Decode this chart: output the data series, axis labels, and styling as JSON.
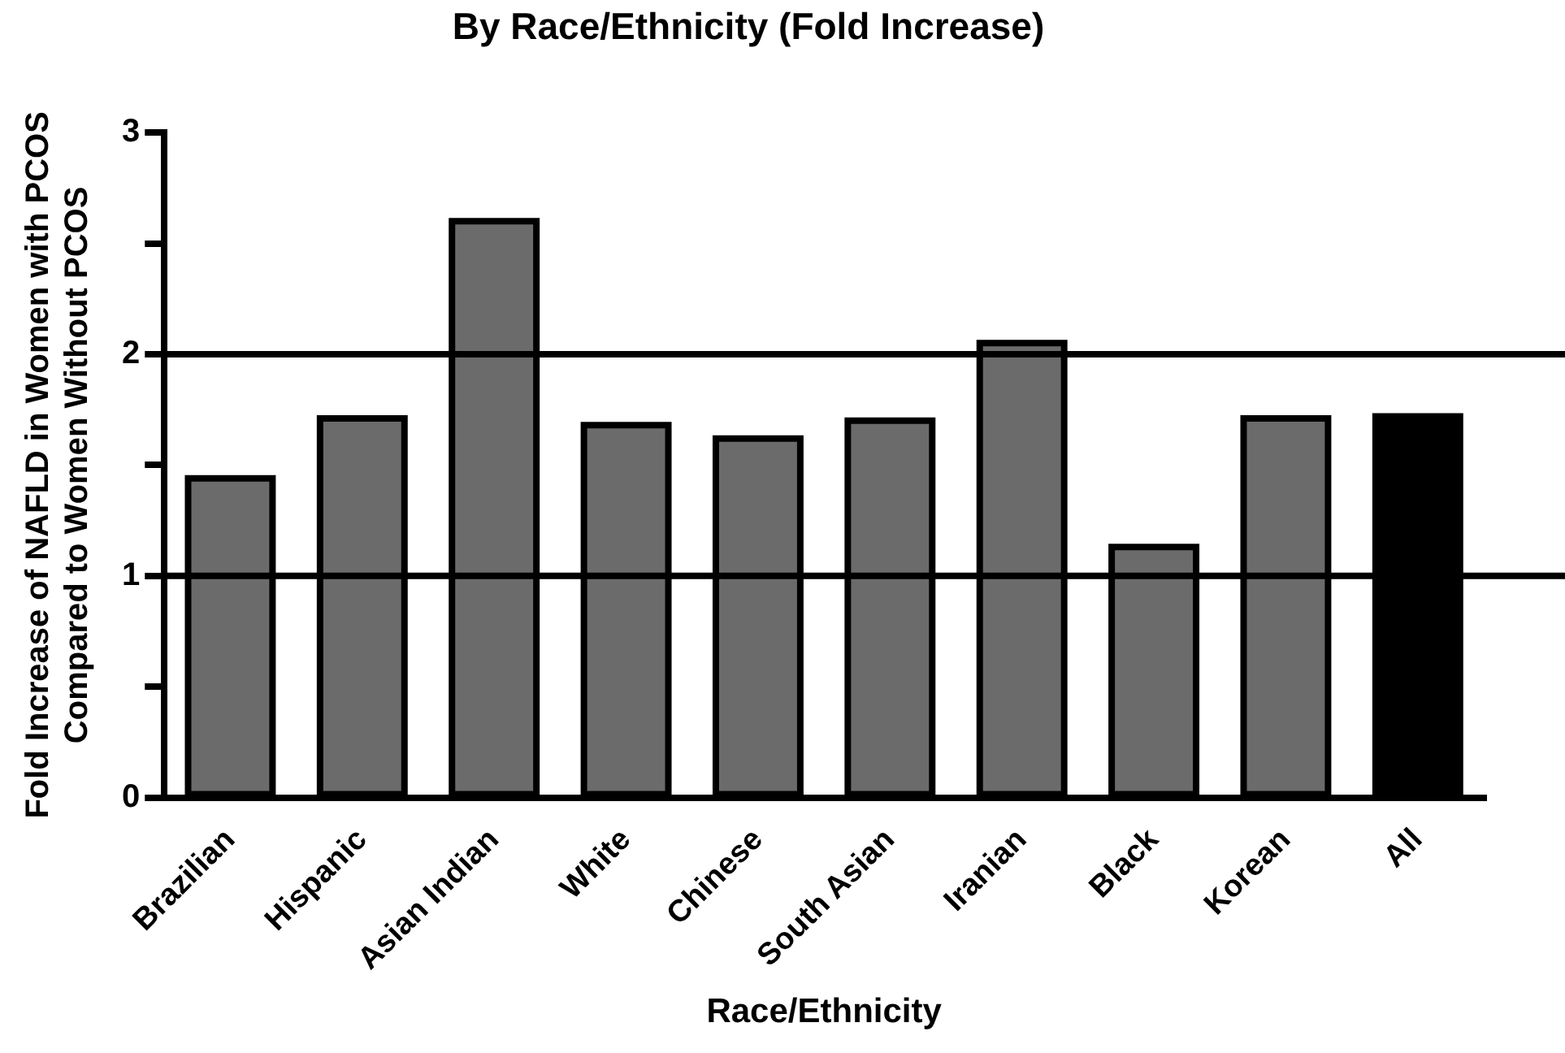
{
  "chart_data": {
    "type": "bar",
    "title": "By Race/Ethnicity (Fold Increase)",
    "xlabel": "Race/Ethnicity",
    "ylabel": "Fold Increase of NAFLD in Women with PCOS\nCompared to Women Without PCOS",
    "categories": [
      "Brazilian",
      "Hispanic",
      "Asian Indian",
      "White",
      "Chinese",
      "South Asian",
      "Iranian",
      "Black",
      "Korean",
      "All"
    ],
    "values": [
      1.44,
      1.71,
      2.6,
      1.68,
      1.62,
      1.7,
      2.05,
      1.13,
      1.71,
      1.72
    ],
    "colors": [
      "#6b6b6b",
      "#6b6b6b",
      "#6b6b6b",
      "#6b6b6b",
      "#6b6b6b",
      "#6b6b6b",
      "#6b6b6b",
      "#6b6b6b",
      "#6b6b6b",
      "#000000"
    ],
    "ylim": [
      0,
      3
    ],
    "yticks": [
      0,
      {
        "value": 0.5,
        "label": null
      },
      1,
      {
        "value": 1.5,
        "label": null
      },
      2,
      {
        "value": 2.5,
        "label": null
      },
      3
    ],
    "ref_lines": [
      {
        "axis": "y",
        "value": 1,
        "color": "#000000"
      },
      {
        "axis": "y",
        "value": 2,
        "color": "#000000"
      }
    ],
    "grid": false,
    "legend": false
  }
}
